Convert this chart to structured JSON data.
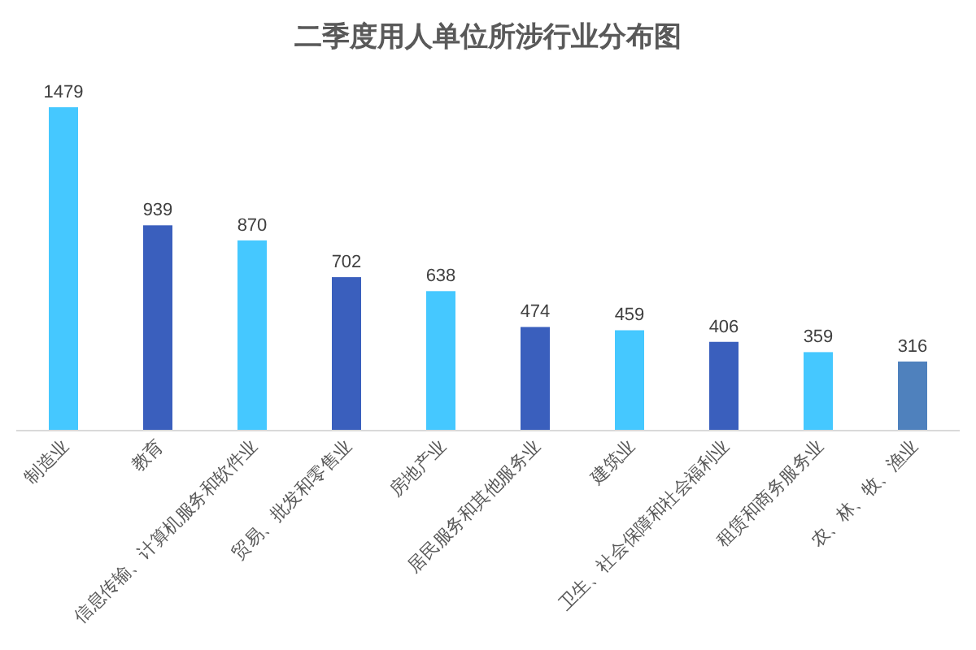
{
  "chart_data": {
    "type": "bar",
    "title": "二季度用人单位所涉行业分布图",
    "categories": [
      "制造业",
      "教育",
      "信息传输、计算机服务和软件业",
      "贸易、批发和零售业",
      "房地产业",
      "居民服务和其他服务业",
      "建筑业",
      "卫生、社会保障和社会福利业",
      "租赁和商务服务业",
      "农、林、牧、渔业"
    ],
    "values": [
      1479,
      939,
      870,
      702,
      638,
      474,
      459,
      406,
      359,
      316
    ],
    "colors": [
      "#45c8ff",
      "#3a5fbd",
      "#45c8ff",
      "#3a5fbd",
      "#45c8ff",
      "#3a5fbd",
      "#45c8ff",
      "#3a5fbd",
      "#45c8ff",
      "#4f81bd"
    ],
    "data_labels": true,
    "grid": false
  }
}
